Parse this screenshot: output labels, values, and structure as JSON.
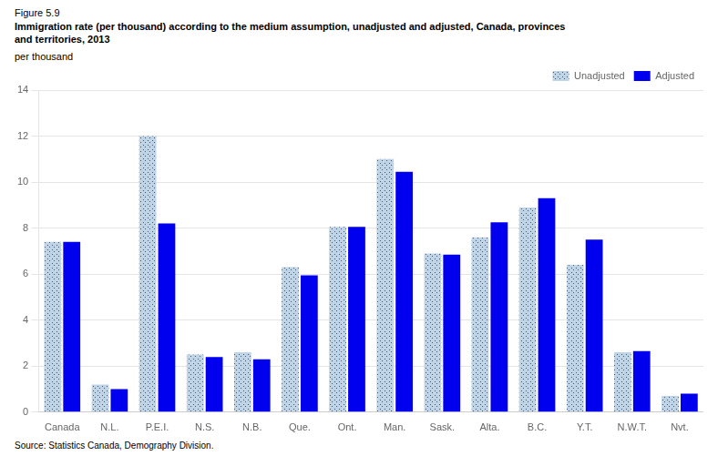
{
  "chart_data": {
    "type": "bar",
    "subtitle": "Figure 5.9",
    "title": [
      "Immigration rate (per thousand) according to the medium assumption, unadjusted and adjusted, Canada, provinces",
      "and territories, 2013"
    ],
    "ylabel": "per thousand",
    "annotations": [
      "Source: Statistics Canada, Demography Division."
    ],
    "categories": [
      "Canada",
      "N.L.",
      "P.E.I.",
      "N.S.",
      "N.B.",
      "Que.",
      "Ont.",
      "Man.",
      "Sask.",
      "Alta.",
      "B.C.",
      "Y.T.",
      "N.W.T.",
      "Nvt."
    ],
    "series": [
      {
        "name": "Unadjusted",
        "color": "#c0d4e8",
        "values": [
          7.4,
          1.2,
          12.0,
          2.5,
          2.6,
          6.3,
          8.05,
          11.0,
          6.9,
          7.6,
          8.9,
          6.4,
          2.6,
          0.7
        ]
      },
      {
        "name": "Adjusted",
        "color": "#0000ee",
        "values": [
          7.4,
          1.0,
          8.2,
          2.4,
          2.3,
          5.95,
          8.05,
          10.45,
          6.85,
          8.25,
          9.3,
          7.5,
          2.65,
          0.8
        ]
      }
    ],
    "ylim": [
      0,
      14
    ],
    "yticks": [
      0,
      2,
      4,
      6,
      8,
      10,
      12,
      14
    ],
    "grid": true,
    "legend": "upper right"
  }
}
